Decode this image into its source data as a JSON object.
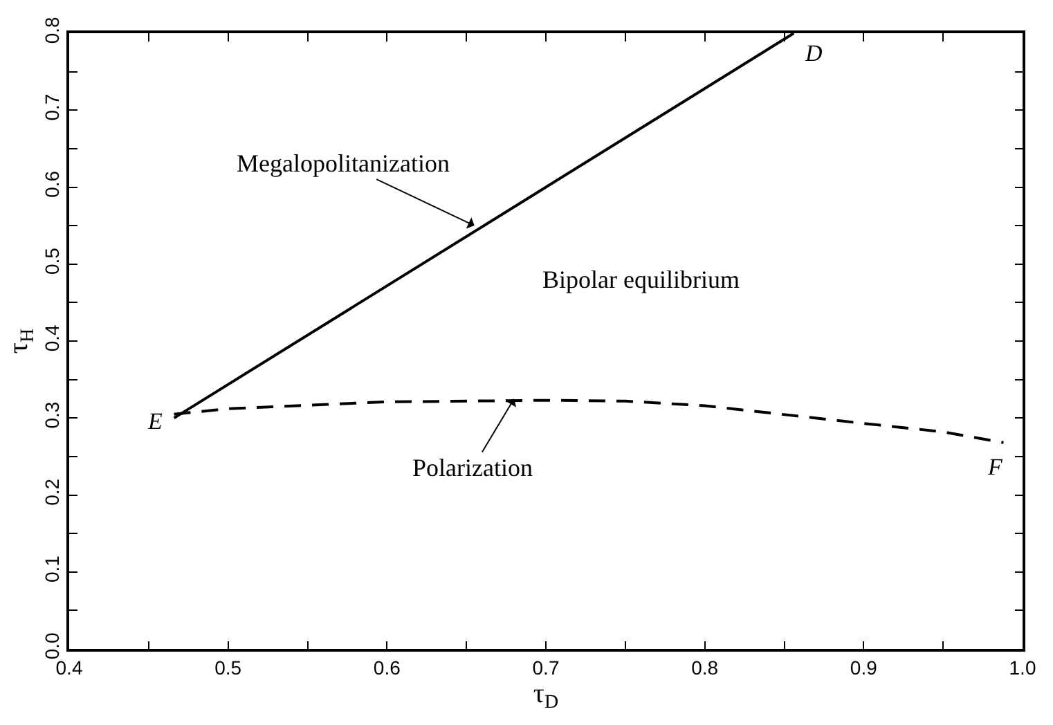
{
  "chart_data": {
    "type": "line",
    "xlabel": "τ$_{D}$",
    "ylabel": "τ$_{H}$",
    "xlim": [
      0.4,
      1.0
    ],
    "ylim": [
      0.0,
      0.8
    ],
    "xticks": [
      0.4,
      {
        "value": 0.45,
        "label": null
      },
      0.5,
      {
        "value": 0.55,
        "label": null
      },
      0.6,
      {
        "value": 0.65,
        "label": null
      },
      0.7,
      {
        "value": 0.75,
        "label": null
      },
      0.8,
      {
        "value": 0.85,
        "label": null
      },
      0.9,
      {
        "value": 0.95,
        "label": null
      },
      {
        "value": 1.0,
        "label": "1.0"
      }
    ],
    "yticks": [
      {
        "value": 0.0,
        "label": "0.0"
      },
      {
        "value": 0.05,
        "label": null
      },
      0.1,
      {
        "value": 0.15,
        "label": null
      },
      0.2,
      {
        "value": 0.25,
        "label": null
      },
      0.3,
      {
        "value": 0.35,
        "label": null
      },
      0.4,
      {
        "value": 0.45,
        "label": null
      },
      0.5,
      {
        "value": 0.55,
        "label": null
      },
      0.6,
      {
        "value": 0.65,
        "label": null
      },
      0.7,
      {
        "value": 0.75,
        "label": null
      },
      0.8
    ],
    "grid": false,
    "marker": "none",
    "series": [
      {
        "color": "#000000",
        "line_style": "solid",
        "x": [
          0.466,
          0.856
        ],
        "values": [
          0.3,
          0.8
        ]
      },
      {
        "color": "#000000",
        "line_style": "dashed",
        "x": [
          0.466,
          0.5,
          0.6,
          0.7,
          0.75,
          0.8,
          0.9,
          0.95,
          0.988
        ],
        "values": [
          0.305,
          0.312,
          0.321,
          0.323,
          0.322,
          0.316,
          0.293,
          0.282,
          0.268
        ]
      }
    ],
    "annotations": [
      {
        "text": "Megalopolitanization",
        "x": 0.655,
        "y": 0.55
      },
      {
        "text": "Polarization",
        "x": 0.68,
        "y": 0.325
      },
      "Bipolar equilibrium",
      {
        "text": "E",
        "x": 0.466,
        "y": 0.3
      },
      {
        "text": "D",
        "x": 0.856,
        "y": 0.8
      },
      {
        "text": "F",
        "x": 0.988,
        "y": 0.268
      }
    ]
  }
}
